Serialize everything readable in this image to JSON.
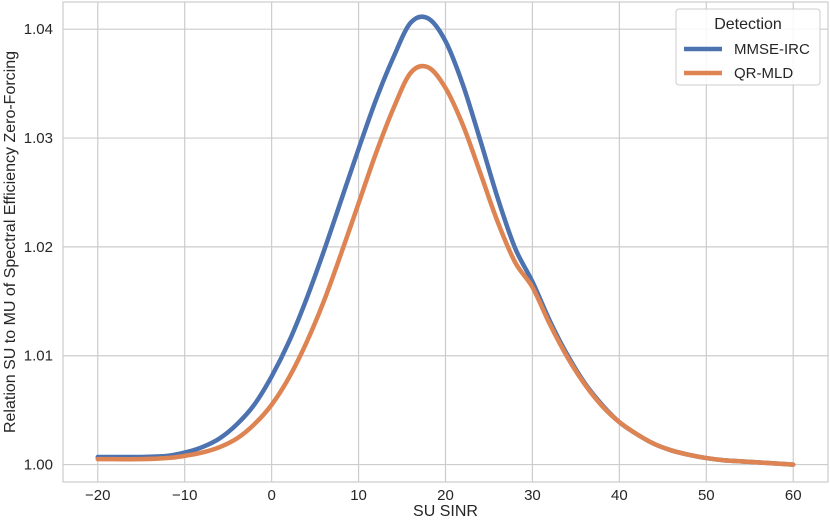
{
  "chart_data": {
    "type": "line",
    "xlabel": "SU SINR",
    "ylabel": "Relation SU to MU of Spectral Efficiency Zero-Forcing",
    "xlim": [
      -24,
      64
    ],
    "ylim": [
      0.9984,
      1.0425
    ],
    "xticks": [
      -20,
      -10,
      0,
      10,
      20,
      30,
      40,
      50,
      60
    ],
    "xtick_labels": [
      "−20",
      "−10",
      "0",
      "10",
      "20",
      "30",
      "40",
      "50",
      "60"
    ],
    "yticks": [
      1.0,
      1.01,
      1.02,
      1.03,
      1.04
    ],
    "ytick_labels": [
      "1.00",
      "1.01",
      "1.02",
      "1.03",
      "1.04"
    ],
    "grid": true,
    "legend": {
      "title": "Detection",
      "placement": "top-right"
    },
    "series": [
      {
        "name": "MMSE-IRC",
        "color": "#4c72b0",
        "x": [
          -20,
          -15,
          -12,
          -10,
          -8,
          -6,
          -4,
          -2,
          0,
          2,
          4,
          6,
          8,
          10,
          12,
          14,
          16,
          18,
          20,
          22,
          24,
          26,
          28,
          30,
          32,
          34,
          36,
          38,
          40,
          42,
          44,
          46,
          48,
          50,
          52,
          54,
          56,
          58,
          60
        ],
        "y": [
          1.0007,
          1.0007,
          1.0008,
          1.0011,
          1.0016,
          1.0024,
          1.0037,
          1.0055,
          1.0081,
          1.0113,
          1.0152,
          1.0196,
          1.0243,
          1.029,
          1.0335,
          1.0374,
          1.0406,
          1.041,
          1.0389,
          1.0349,
          1.0298,
          1.0245,
          1.0199,
          1.0168,
          1.0132,
          1.0101,
          1.0075,
          1.0055,
          1.0039,
          1.0028,
          1.0019,
          1.0013,
          1.0009,
          1.0006,
          1.0004,
          1.0003,
          1.0002,
          1.0001,
          1.0
        ]
      },
      {
        "name": "QR-MLD",
        "color": "#dd8452",
        "x": [
          -20,
          -15,
          -12,
          -10,
          -8,
          -6,
          -4,
          -2,
          0,
          2,
          4,
          6,
          8,
          10,
          12,
          14,
          16,
          18,
          20,
          22,
          24,
          26,
          28,
          30,
          32,
          34,
          36,
          38,
          40,
          42,
          44,
          46,
          48,
          50,
          52,
          54,
          56,
          58,
          60
        ],
        "y": [
          1.0005,
          1.0005,
          1.0006,
          1.0008,
          1.0011,
          1.0016,
          1.0024,
          1.0037,
          1.0055,
          1.008,
          1.0112,
          1.015,
          1.0194,
          1.024,
          1.0286,
          1.0327,
          1.036,
          1.0365,
          1.0346,
          1.0312,
          1.0268,
          1.0223,
          1.0186,
          1.0163,
          1.0129,
          1.0099,
          1.0074,
          1.0054,
          1.0039,
          1.0028,
          1.0019,
          1.0013,
          1.0009,
          1.0006,
          1.0004,
          1.0003,
          1.0002,
          1.0001,
          1.0
        ]
      }
    ]
  }
}
